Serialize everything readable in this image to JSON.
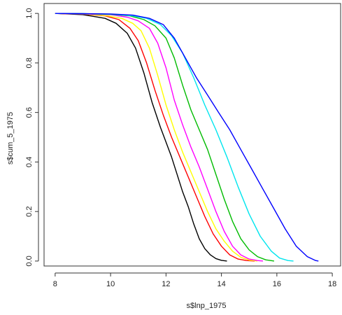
{
  "chart_data": {
    "type": "line",
    "title": "",
    "xlabel": "s$lnp_1975",
    "ylabel": "s$cum_5_1975",
    "xlim": [
      7.6,
      18.3
    ],
    "ylim": [
      -0.02,
      1.04
    ],
    "xticks": [
      8,
      10,
      12,
      14,
      16,
      18
    ],
    "yticks": [
      0.0,
      0.2,
      0.4,
      0.6,
      0.8,
      1.0
    ],
    "xtick_labels": [
      "8",
      "10",
      "12",
      "14",
      "16",
      "18"
    ],
    "ytick_labels": [
      "0.0",
      "0.2",
      "0.4",
      "0.6",
      "0.8",
      "1.0"
    ],
    "grid": false,
    "legend": "none",
    "series": [
      {
        "color": "#000000",
        "points": [
          [
            8,
            1.0
          ],
          [
            9,
            0.995
          ],
          [
            9.8,
            0.98
          ],
          [
            10.2,
            0.96
          ],
          [
            10.6,
            0.92
          ],
          [
            10.9,
            0.86
          ],
          [
            11.2,
            0.76
          ],
          [
            11.5,
            0.64
          ],
          [
            11.8,
            0.54
          ],
          [
            12.0,
            0.48
          ],
          [
            12.2,
            0.42
          ],
          [
            12.4,
            0.35
          ],
          [
            12.6,
            0.28
          ],
          [
            12.8,
            0.22
          ],
          [
            13.0,
            0.15
          ],
          [
            13.2,
            0.09
          ],
          [
            13.4,
            0.05
          ],
          [
            13.6,
            0.025
          ],
          [
            13.8,
            0.01
          ],
          [
            14.0,
            0.003
          ],
          [
            14.2,
            0.0
          ]
        ]
      },
      {
        "color": "#ff0000",
        "points": [
          [
            8,
            1.0
          ],
          [
            9,
            0.997
          ],
          [
            9.8,
            0.99
          ],
          [
            10.3,
            0.975
          ],
          [
            10.7,
            0.94
          ],
          [
            11.0,
            0.89
          ],
          [
            11.3,
            0.8
          ],
          [
            11.6,
            0.69
          ],
          [
            11.9,
            0.59
          ],
          [
            12.2,
            0.5
          ],
          [
            12.5,
            0.42
          ],
          [
            12.8,
            0.34
          ],
          [
            13.1,
            0.26
          ],
          [
            13.4,
            0.18
          ],
          [
            13.7,
            0.11
          ],
          [
            14.0,
            0.06
          ],
          [
            14.3,
            0.025
          ],
          [
            14.6,
            0.008
          ],
          [
            14.9,
            0.002
          ],
          [
            15.2,
            0.0
          ]
        ]
      },
      {
        "color": "#ffff00",
        "points": [
          [
            8,
            1.0
          ],
          [
            9,
            0.998
          ],
          [
            9.9,
            0.99
          ],
          [
            10.4,
            0.98
          ],
          [
            10.8,
            0.96
          ],
          [
            11.1,
            0.93
          ],
          [
            11.4,
            0.86
          ],
          [
            11.7,
            0.75
          ],
          [
            12.0,
            0.63
          ],
          [
            12.3,
            0.53
          ],
          [
            12.6,
            0.44
          ],
          [
            12.9,
            0.36
          ],
          [
            13.2,
            0.28
          ],
          [
            13.5,
            0.2
          ],
          [
            13.8,
            0.13
          ],
          [
            14.1,
            0.08
          ],
          [
            14.4,
            0.04
          ],
          [
            14.7,
            0.015
          ],
          [
            15.0,
            0.004
          ],
          [
            15.3,
            0.0
          ]
        ]
      },
      {
        "color": "#ff00ff",
        "points": [
          [
            8,
            1.0
          ],
          [
            9,
            0.998
          ],
          [
            10,
            0.995
          ],
          [
            10.6,
            0.985
          ],
          [
            11.0,
            0.97
          ],
          [
            11.4,
            0.94
          ],
          [
            11.7,
            0.88
          ],
          [
            12.0,
            0.78
          ],
          [
            12.3,
            0.65
          ],
          [
            12.6,
            0.55
          ],
          [
            12.9,
            0.46
          ],
          [
            13.2,
            0.38
          ],
          [
            13.5,
            0.29
          ],
          [
            13.8,
            0.2
          ],
          [
            14.1,
            0.12
          ],
          [
            14.4,
            0.06
          ],
          [
            14.7,
            0.025
          ],
          [
            15.0,
            0.008
          ],
          [
            15.3,
            0.002
          ],
          [
            15.5,
            0.0
          ]
        ]
      },
      {
        "color": "#00bb00",
        "points": [
          [
            8,
            1.0
          ],
          [
            9,
            0.999
          ],
          [
            10,
            0.996
          ],
          [
            10.7,
            0.99
          ],
          [
            11.2,
            0.975
          ],
          [
            11.6,
            0.95
          ],
          [
            12.0,
            0.9
          ],
          [
            12.3,
            0.82
          ],
          [
            12.6,
            0.71
          ],
          [
            12.9,
            0.61
          ],
          [
            13.2,
            0.53
          ],
          [
            13.5,
            0.45
          ],
          [
            13.8,
            0.35
          ],
          [
            14.1,
            0.25
          ],
          [
            14.4,
            0.16
          ],
          [
            14.7,
            0.09
          ],
          [
            15.0,
            0.045
          ],
          [
            15.3,
            0.018
          ],
          [
            15.6,
            0.005
          ],
          [
            15.9,
            0.0
          ]
        ]
      },
      {
        "color": "#00e5ee",
        "points": [
          [
            8,
            1.0
          ],
          [
            9,
            0.999
          ],
          [
            10,
            0.997
          ],
          [
            10.8,
            0.99
          ],
          [
            11.3,
            0.98
          ],
          [
            11.8,
            0.955
          ],
          [
            12.2,
            0.91
          ],
          [
            12.6,
            0.84
          ],
          [
            13.0,
            0.74
          ],
          [
            13.4,
            0.63
          ],
          [
            13.8,
            0.53
          ],
          [
            14.2,
            0.42
          ],
          [
            14.6,
            0.3
          ],
          [
            15.0,
            0.19
          ],
          [
            15.4,
            0.1
          ],
          [
            15.8,
            0.04
          ],
          [
            16.1,
            0.012
          ],
          [
            16.4,
            0.002
          ],
          [
            16.6,
            0.0
          ]
        ]
      },
      {
        "color": "#0000ff",
        "points": [
          [
            8,
            1.0
          ],
          [
            9,
            0.999
          ],
          [
            10,
            0.998
          ],
          [
            10.8,
            0.993
          ],
          [
            11.4,
            0.98
          ],
          [
            11.9,
            0.955
          ],
          [
            12.3,
            0.9
          ],
          [
            12.7,
            0.82
          ],
          [
            13.1,
            0.74
          ],
          [
            13.5,
            0.67
          ],
          [
            13.9,
            0.6
          ],
          [
            14.3,
            0.53
          ],
          [
            14.7,
            0.45
          ],
          [
            15.1,
            0.37
          ],
          [
            15.5,
            0.29
          ],
          [
            15.9,
            0.21
          ],
          [
            16.3,
            0.13
          ],
          [
            16.7,
            0.06
          ],
          [
            17.1,
            0.018
          ],
          [
            17.4,
            0.002
          ],
          [
            17.5,
            0.0
          ]
        ]
      }
    ]
  }
}
